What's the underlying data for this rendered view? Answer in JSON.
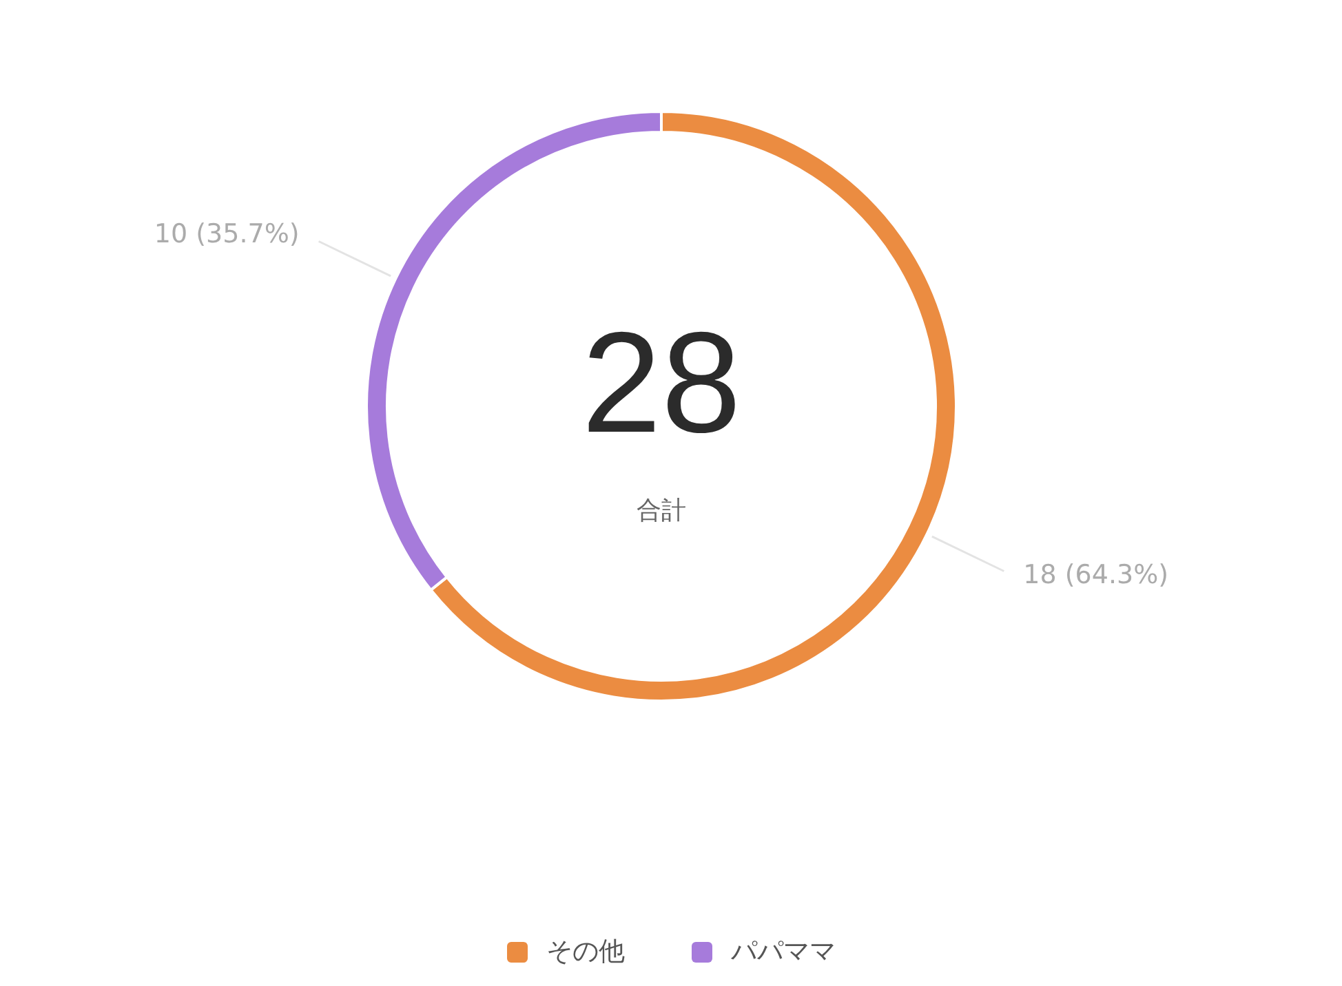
{
  "chart_data": {
    "type": "donut",
    "categories": [
      "その他",
      "パパママ"
    ],
    "values": [
      18,
      10
    ],
    "colors": [
      "#eb8c41",
      "#a67bdb"
    ],
    "value_labels": [
      "18 (64.3%)",
      "10 (35.7%)"
    ],
    "annotations": [
      "28",
      "合計"
    ],
    "legend": "bottom"
  }
}
